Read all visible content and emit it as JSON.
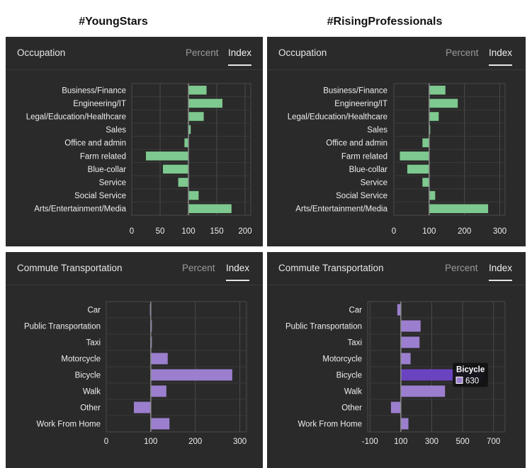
{
  "columns": [
    "#YoungStars",
    "#RisingProfessionals"
  ],
  "tabs": {
    "percent": "Percent",
    "index": "Index",
    "active": "Index"
  },
  "colors": {
    "occupation_bar": "#7ec98f",
    "commute_bar": "#9b7fce",
    "commute_highlight": "#6a43c0",
    "panel_bg": "#2a2a2a",
    "grid": "#4a4a4a",
    "baseline": "#8a8a8a"
  },
  "panels": [
    {
      "id": "occ-young",
      "title": "Occupation"
    },
    {
      "id": "occ-rising",
      "title": "Occupation"
    },
    {
      "id": "com-young",
      "title": "Commute Transportation"
    },
    {
      "id": "com-rising",
      "title": "Commute Transportation"
    }
  ],
  "chart_data": [
    {
      "type": "bar",
      "orientation": "horizontal",
      "panel": "occ-young",
      "categories": [
        "Business/Finance",
        "Engineering/IT",
        "Legal/Education/Healthcare",
        "Sales",
        "Office and admin",
        "Farm related",
        "Blue-collar",
        "Service",
        "Social Service",
        "Arts/Entertainment/Media"
      ],
      "values": [
        132,
        160,
        127,
        104,
        93,
        25,
        55,
        82,
        118,
        176
      ],
      "baseline": 100,
      "xlim": [
        0,
        210
      ],
      "xticks": [
        0,
        50,
        100,
        150,
        200
      ],
      "grid": true
    },
    {
      "type": "bar",
      "orientation": "horizontal",
      "panel": "occ-rising",
      "categories": [
        "Business/Finance",
        "Engineering/IT",
        "Legal/Education/Healthcare",
        "Sales",
        "Office and admin",
        "Farm related",
        "Blue-collar",
        "Service",
        "Social Service",
        "Arts/Entertainment/Media"
      ],
      "values": [
        146,
        181,
        127,
        100,
        81,
        17,
        38,
        81,
        117,
        267
      ],
      "baseline": 100,
      "xlim": [
        0,
        315
      ],
      "xticks": [
        0,
        100,
        200,
        300
      ],
      "grid": true
    },
    {
      "type": "bar",
      "orientation": "horizontal",
      "panel": "com-young",
      "categories": [
        "Car",
        "Public Transportation",
        "Taxi",
        "Motorcycle",
        "Bicycle",
        "Walk",
        "Other",
        "Work From Home"
      ],
      "values": [
        98,
        100,
        100,
        138,
        283,
        135,
        62,
        142
      ],
      "baseline": 100,
      "xlim": [
        0,
        315
      ],
      "xticks": [
        0,
        100,
        200,
        300
      ],
      "grid": true
    },
    {
      "type": "bar",
      "orientation": "horizontal",
      "panel": "com-rising",
      "categories": [
        "Car",
        "Public Transportation",
        "Taxi",
        "Motorcycle",
        "Bicycle",
        "Walk",
        "Other",
        "Work From Home"
      ],
      "values": [
        77,
        228,
        221,
        163,
        630,
        386,
        36,
        149
      ],
      "baseline": 100,
      "xlim": [
        -115,
        775
      ],
      "xticks": [
        -100,
        100,
        300,
        500,
        700
      ],
      "grid": true,
      "tooltip": {
        "label": "Bicycle",
        "value": "630"
      }
    }
  ]
}
